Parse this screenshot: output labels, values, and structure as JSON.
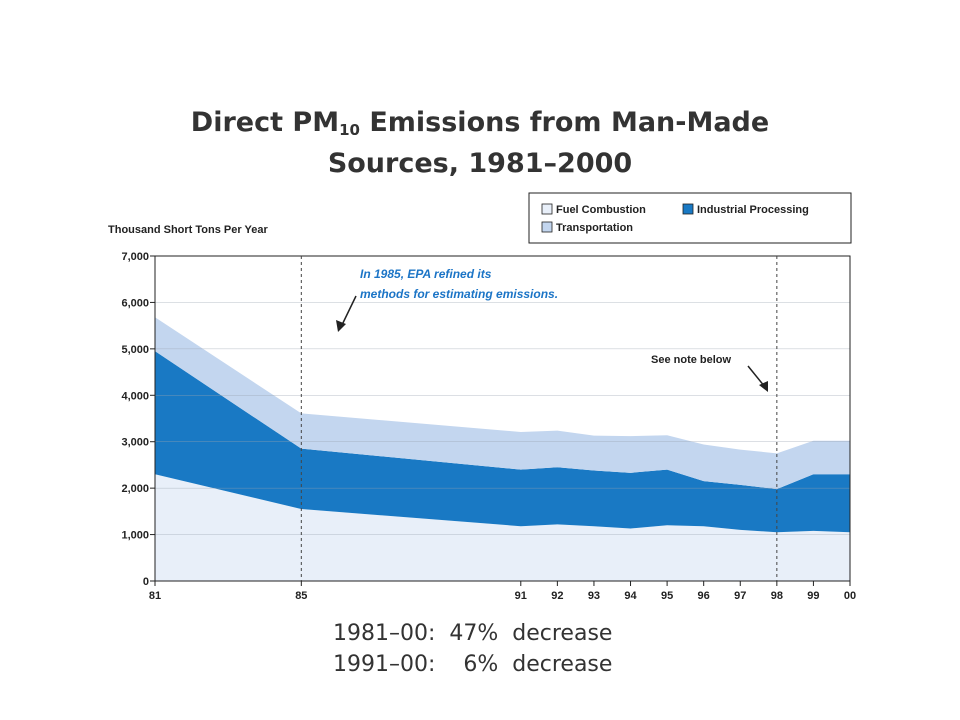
{
  "chart_data": {
    "type": "area",
    "stacked": true,
    "title_main": "Direct PM",
    "title_sub": "10",
    "title_rest": " Emissions from Man-Made",
    "title_line2": "Sources, 1981–2000",
    "ylabel": "Thousand Short Tons Per Year",
    "ylim": [
      0,
      7000
    ],
    "yticks": [
      0,
      1000,
      2000,
      3000,
      4000,
      5000,
      6000,
      7000
    ],
    "ytick_labels": [
      "0",
      "1,000",
      "2,000",
      "3,000",
      "4,000",
      "5,000",
      "6,000",
      "7,000"
    ],
    "xlim": [
      1981,
      2000
    ],
    "xticks": [
      1981,
      1985,
      1991,
      1992,
      1993,
      1994,
      1995,
      1996,
      1997,
      1998,
      1999,
      2000
    ],
    "xtick_labels": [
      "81",
      "85",
      "91",
      "92",
      "93",
      "94",
      "95",
      "96",
      "97",
      "98",
      "99",
      "00"
    ],
    "x": [
      1981,
      1985,
      1991,
      1992,
      1993,
      1994,
      1995,
      1996,
      1997,
      1998,
      1999,
      2000
    ],
    "series": [
      {
        "name": "Fuel Combustion",
        "color": "#e8eff9",
        "values": [
          2300,
          1550,
          1180,
          1220,
          1180,
          1130,
          1200,
          1180,
          1100,
          1050,
          1080,
          1050
        ]
      },
      {
        "name": "Industrial Processing",
        "color": "#1979c4",
        "values": [
          2650,
          1300,
          1220,
          1230,
          1200,
          1200,
          1200,
          970,
          970,
          930,
          1220,
          1250
        ]
      },
      {
        "name": "Transportation",
        "color": "#c3d6ef",
        "values": [
          730,
          760,
          810,
          790,
          750,
          790,
          740,
          790,
          760,
          770,
          720,
          720
        ]
      }
    ],
    "grid": true,
    "legend_position": "top-right",
    "vlines": [
      1985,
      1998
    ],
    "annotations": [
      {
        "text_line1": "In 1985, EPA refined its",
        "text_line2": "methods for estimating emissions.",
        "x": 1985
      },
      {
        "text": "See note below",
        "x": 1998
      }
    ]
  },
  "summary": {
    "line1": "1981–00:  47%  decrease",
    "line2": "1991–00:    6%  decrease"
  }
}
